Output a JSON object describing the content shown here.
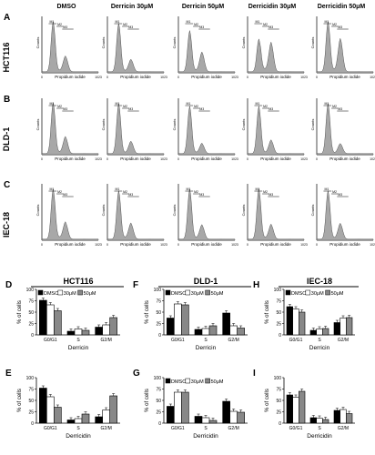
{
  "figure": {
    "panel_letters_top": [
      "A",
      "B",
      "C"
    ],
    "columns": [
      "DMSO",
      "Derricin 30μM",
      "Derricin 50μM",
      "Derricidin 30μM",
      "Derricidin 50μM"
    ],
    "rows": [
      "HCT116",
      "DLD-1",
      "IEC-18"
    ],
    "hist_ylabel": "Counts",
    "hist_xlabel": "Propidium iodide",
    "peak_labels": [
      "M1",
      "M2",
      "M3"
    ],
    "axis_min": "0",
    "axis_max": "1023"
  },
  "colors": {
    "hist_fill": "#a8a8a8",
    "dmso": "#000000",
    "c30": "#ffffff",
    "c50": "#888888"
  },
  "chart_data": [
    {
      "panel": "D",
      "type": "bar",
      "title": "HCT116",
      "xlabel": "Derricin",
      "ylabel": "% of cells",
      "ylim": [
        0,
        100
      ],
      "yticks": [
        "0",
        "25",
        "50",
        "75",
        "100"
      ],
      "categories": [
        "G0/G1",
        "S",
        "G2/M"
      ],
      "legend": [
        "DMSO",
        "30μM",
        "50μM"
      ],
      "series": [
        {
          "name": "DMSO",
          "values": [
            76,
            8,
            17
          ]
        },
        {
          "name": "30μM",
          "values": [
            66,
            13,
            22
          ]
        },
        {
          "name": "50μM",
          "values": [
            53,
            10,
            38
          ]
        }
      ]
    },
    {
      "panel": "E",
      "type": "bar",
      "title": "",
      "xlabel": "Derricidin",
      "ylabel": "% of cells",
      "ylim": [
        0,
        100
      ],
      "yticks": [
        "0",
        "25",
        "50",
        "75",
        "100"
      ],
      "categories": [
        "G0/G1",
        "S",
        "G2/M"
      ],
      "series": [
        {
          "name": "DMSO",
          "values": [
            77,
            7,
            14
          ]
        },
        {
          "name": "30μM",
          "values": [
            58,
            10,
            29
          ]
        },
        {
          "name": "50μM",
          "values": [
            35,
            20,
            60
          ]
        }
      ]
    },
    {
      "panel": "F",
      "type": "bar",
      "title": "DLD-1",
      "xlabel": "Derricin",
      "ylabel": "% of cells",
      "ylim": [
        0,
        100
      ],
      "yticks": [
        "0",
        "25",
        "50",
        "75",
        "100"
      ],
      "categories": [
        "G0/G1",
        "S",
        "G2/M"
      ],
      "legend": [
        "DMSO",
        "30μM",
        "50μM"
      ],
      "series": [
        {
          "name": "DMSO",
          "values": [
            37,
            12,
            48
          ]
        },
        {
          "name": "30μM",
          "values": [
            68,
            14,
            20
          ]
        },
        {
          "name": "50μM",
          "values": [
            66,
            20,
            15
          ]
        }
      ]
    },
    {
      "panel": "G",
      "type": "bar",
      "title": "",
      "xlabel": "Derricidin",
      "ylabel": "% of cells",
      "ylim": [
        0,
        100
      ],
      "yticks": [
        "0",
        "25",
        "50",
        "75",
        "100"
      ],
      "categories": [
        "G0/G1",
        "S",
        "G2/M"
      ],
      "legend": [
        "DMSO",
        "30μM",
        "50μM"
      ],
      "series": [
        {
          "name": "DMSO",
          "values": [
            37,
            15,
            48
          ]
        },
        {
          "name": "30μM",
          "values": [
            68,
            12,
            26
          ]
        },
        {
          "name": "50μM",
          "values": [
            68,
            6,
            24
          ]
        }
      ]
    },
    {
      "panel": "H",
      "type": "bar",
      "title": "IEC-18",
      "xlabel": "Derricin",
      "ylabel": "% of cells",
      "ylim": [
        0,
        100
      ],
      "yticks": [
        "0",
        "25",
        "50",
        "75",
        "100"
      ],
      "categories": [
        "G0/G1",
        "S",
        "G2/M"
      ],
      "legend": [
        "DMSO",
        "30μM",
        "50μM"
      ],
      "series": [
        {
          "name": "DMSO",
          "values": [
            62,
            10,
            27
          ]
        },
        {
          "name": "30μM",
          "values": [
            57,
            13,
            37
          ]
        },
        {
          "name": "50μM",
          "values": [
            50,
            14,
            38
          ]
        }
      ]
    },
    {
      "panel": "I",
      "type": "bar",
      "title": "",
      "xlabel": "Derricidin",
      "ylabel": "% of cells",
      "ylim": [
        0,
        100
      ],
      "yticks": [
        "0",
        "25",
        "50",
        "75",
        "100"
      ],
      "categories": [
        "G0/G1",
        "S",
        "G2/M"
      ],
      "series": [
        {
          "name": "DMSO",
          "values": [
            62,
            12,
            28
          ]
        },
        {
          "name": "30μM",
          "values": [
            57,
            11,
            30
          ]
        },
        {
          "name": "50μM",
          "values": [
            70,
            8,
            21
          ]
        }
      ]
    }
  ]
}
